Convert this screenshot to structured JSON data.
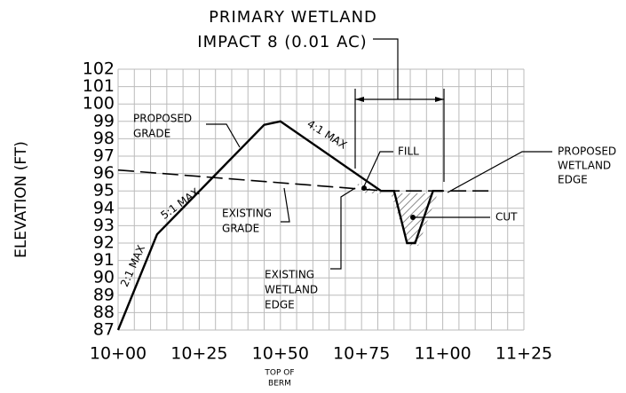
{
  "chart_data": {
    "type": "line",
    "title": [
      "PRIMARY WETLAND",
      "IMPACT 8 (0.01 AC)"
    ],
    "y_label": "ELEVATION (FT)",
    "x_note": [
      "TOP OF",
      "BERM"
    ],
    "xlim": [
      1000,
      1125
    ],
    "ylim": [
      87,
      102
    ],
    "xticks": [
      {
        "value": 1000,
        "label": "10+00"
      },
      {
        "value": 1025,
        "label": "10+25"
      },
      {
        "value": 1050,
        "label": "10+50"
      },
      {
        "value": 1075,
        "label": "10+75"
      },
      {
        "value": 1100,
        "label": "11+00"
      },
      {
        "value": 1125,
        "label": "11+25"
      }
    ],
    "yticks": [
      87,
      88,
      89,
      90,
      91,
      92,
      93,
      94,
      95,
      96,
      97,
      98,
      99,
      100,
      101,
      102
    ],
    "grid": true,
    "series": [
      {
        "color": "#000000",
        "style": "solid",
        "x": [
          1000,
          1012,
          1045,
          1050,
          1081,
          1085,
          1089,
          1091.5,
          1097,
          1100
        ],
        "values": [
          87,
          92.5,
          98.8,
          99,
          95,
          95,
          92,
          92,
          95,
          95
        ]
      },
      {
        "color": "#000000",
        "style": "dashed",
        "x": [
          1000,
          1082,
          1116
        ],
        "values": [
          96.2,
          95,
          95
        ]
      }
    ],
    "annotations": {
      "proposed_grade": [
        "PROPOSED",
        "GRADE"
      ],
      "slope_4": "4:1 MAX",
      "slope_5": "5:1 MAX",
      "slope_2": "2:1 MAX",
      "fill": "FILL",
      "cut": "CUT",
      "proposed_edge": [
        "PROPOSED",
        "WETLAND",
        "EDGE"
      ],
      "existing_grade": [
        "EXISTING",
        "GRADE"
      ],
      "existing_edge": [
        "EXISTING",
        "WETLAND",
        "EDGE"
      ]
    }
  }
}
